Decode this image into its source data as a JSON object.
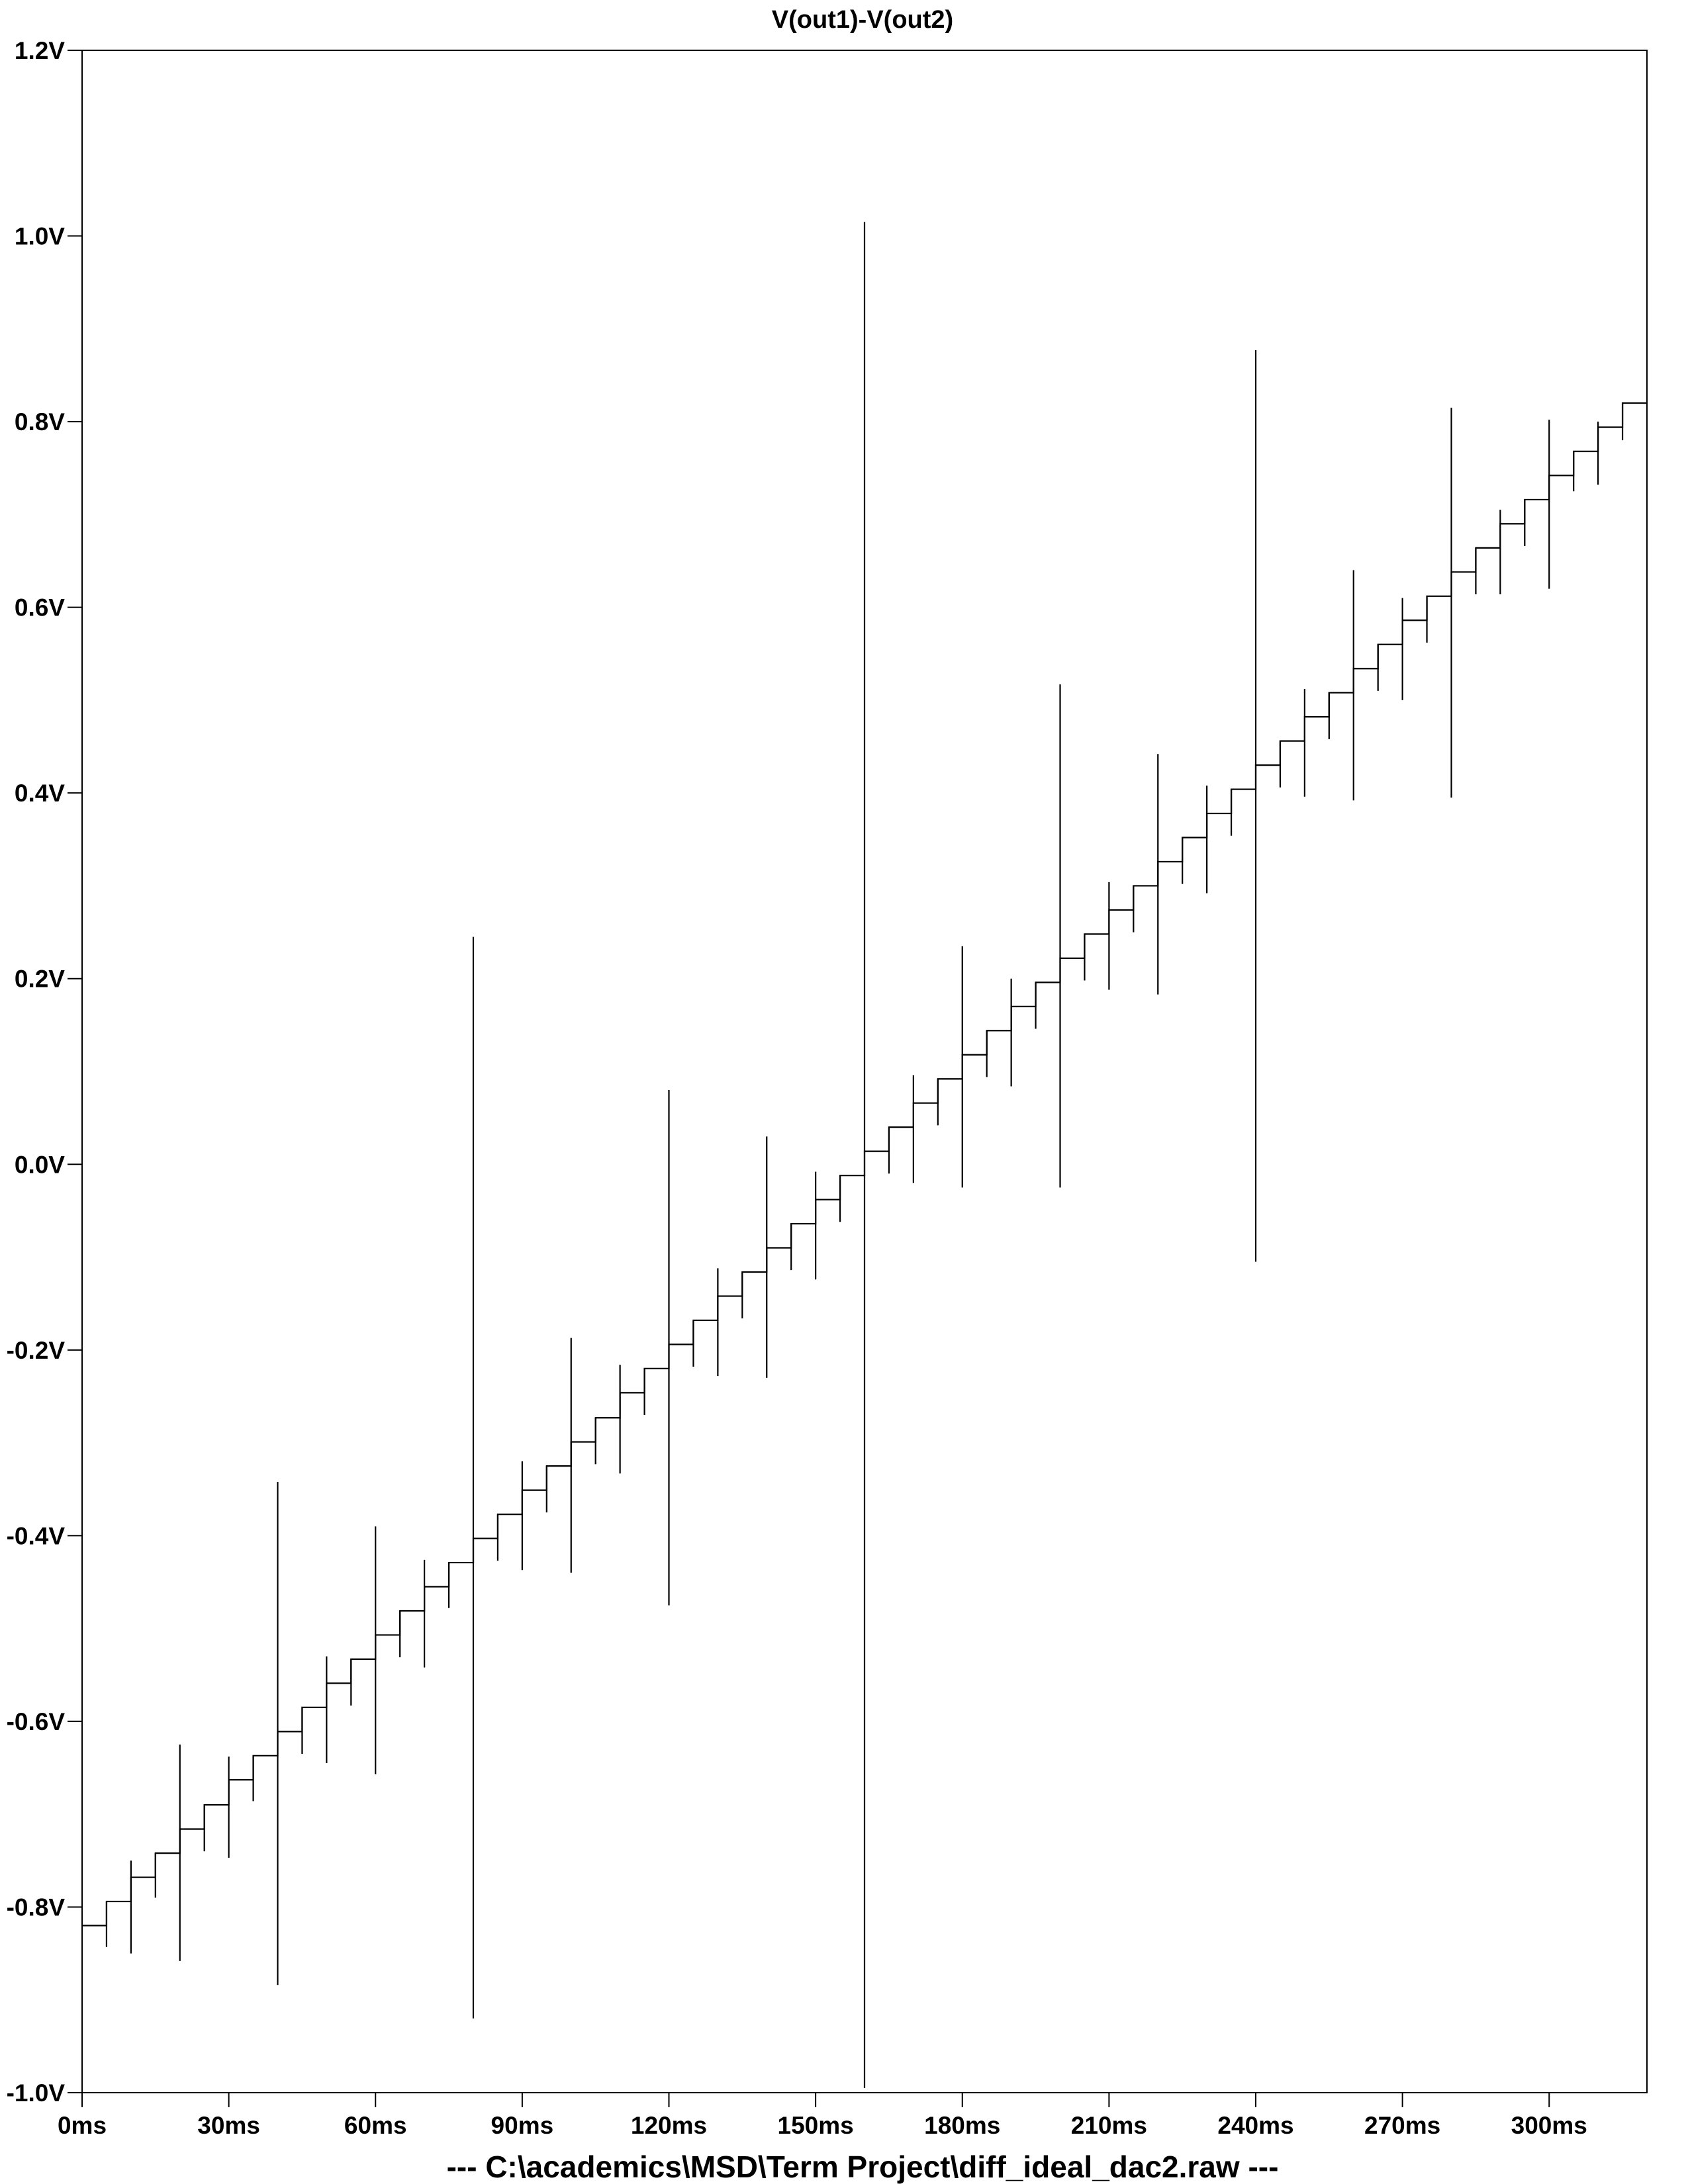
{
  "chart_data": {
    "type": "line",
    "title": "V(out1)-V(out2)",
    "xlabel": "",
    "ylabel": "",
    "footer": "---  C:\\academics\\MSD\\Term Project\\diff_ideal_dac2.raw  ---",
    "xlim": [
      0,
      320
    ],
    "ylim": [
      -1.0,
      1.2
    ],
    "x_unit": "ms",
    "y_unit": "V",
    "x_ticks": [
      0,
      30,
      60,
      90,
      120,
      150,
      180,
      210,
      240,
      270,
      300
    ],
    "x_tick_labels": [
      "0ms",
      "30ms",
      "60ms",
      "90ms",
      "120ms",
      "150ms",
      "180ms",
      "210ms",
      "240ms",
      "270ms",
      "300ms"
    ],
    "y_ticks": [
      1.2,
      1.0,
      0.8,
      0.6,
      0.4,
      0.2,
      0.0,
      -0.2,
      -0.4,
      -0.6,
      -0.8,
      -1.0
    ],
    "y_tick_labels": [
      "1.2V",
      "1.0V",
      "0.8V",
      "0.6V",
      "0.4V",
      "0.2V",
      "0.0V",
      "-0.2V",
      "-0.4V",
      "-0.6V",
      "-0.8V",
      "-1.0V"
    ],
    "series": [
      {
        "name": "V(out1)-V(out2)",
        "color": "#000000",
        "step_ms": 5,
        "levels": [
          -0.82,
          -0.794,
          -0.768,
          -0.742,
          -0.716,
          -0.69,
          -0.663,
          -0.637,
          -0.611,
          -0.585,
          -0.559,
          -0.533,
          -0.507,
          -0.481,
          -0.455,
          -0.429,
          -0.403,
          -0.377,
          -0.351,
          -0.325,
          -0.299,
          -0.273,
          -0.246,
          -0.22,
          -0.194,
          -0.168,
          -0.142,
          -0.116,
          -0.09,
          -0.064,
          -0.038,
          -0.012,
          0.014,
          0.04,
          0.066,
          0.092,
          0.118,
          0.144,
          0.17,
          0.196,
          0.222,
          0.248,
          0.274,
          0.3,
          0.326,
          0.352,
          0.378,
          0.404,
          0.43,
          0.456,
          0.482,
          0.508,
          0.534,
          0.56,
          0.586,
          0.612,
          0.638,
          0.664,
          0.69,
          0.716,
          0.742,
          0.768,
          0.794,
          0.82
        ],
        "transition_spikes": [
          {
            "t": 5,
            "min": -0.843,
            "max": -0.794
          },
          {
            "t": 10,
            "min": -0.85,
            "max": -0.75
          },
          {
            "t": 15,
            "min": -0.79,
            "max": -0.742
          },
          {
            "t": 20,
            "min": -0.858,
            "max": -0.625
          },
          {
            "t": 25,
            "min": -0.74,
            "max": -0.69
          },
          {
            "t": 30,
            "min": -0.747,
            "max": -0.638
          },
          {
            "t": 35,
            "min": -0.686,
            "max": -0.637
          },
          {
            "t": 40,
            "min": -0.884,
            "max": -0.342
          },
          {
            "t": 45,
            "min": -0.635,
            "max": -0.585
          },
          {
            "t": 50,
            "min": -0.645,
            "max": -0.53
          },
          {
            "t": 55,
            "min": -0.583,
            "max": -0.533
          },
          {
            "t": 60,
            "min": -0.657,
            "max": -0.39
          },
          {
            "t": 65,
            "min": -0.531,
            "max": -0.481
          },
          {
            "t": 70,
            "min": -0.542,
            "max": -0.426
          },
          {
            "t": 75,
            "min": -0.478,
            "max": -0.429
          },
          {
            "t": 80,
            "min": -0.92,
            "max": 0.245
          },
          {
            "t": 85,
            "min": -0.427,
            "max": -0.377
          },
          {
            "t": 90,
            "min": -0.437,
            "max": -0.32
          },
          {
            "t": 95,
            "min": -0.375,
            "max": -0.325
          },
          {
            "t": 100,
            "min": -0.44,
            "max": -0.187
          },
          {
            "t": 105,
            "min": -0.323,
            "max": -0.273
          },
          {
            "t": 110,
            "min": -0.333,
            "max": -0.216
          },
          {
            "t": 115,
            "min": -0.27,
            "max": -0.22
          },
          {
            "t": 120,
            "min": -0.475,
            "max": 0.08
          },
          {
            "t": 125,
            "min": -0.218,
            "max": -0.168
          },
          {
            "t": 130,
            "min": -0.228,
            "max": -0.112
          },
          {
            "t": 135,
            "min": -0.166,
            "max": -0.116
          },
          {
            "t": 140,
            "min": -0.23,
            "max": 0.03
          },
          {
            "t": 145,
            "min": -0.114,
            "max": -0.064
          },
          {
            "t": 150,
            "min": -0.124,
            "max": -0.008
          },
          {
            "t": 155,
            "min": -0.062,
            "max": -0.012
          },
          {
            "t": 160,
            "min": -0.995,
            "max": 1.015
          },
          {
            "t": 165,
            "min": -0.01,
            "max": 0.04
          },
          {
            "t": 170,
            "min": -0.02,
            "max": 0.096
          },
          {
            "t": 175,
            "min": 0.042,
            "max": 0.092
          },
          {
            "t": 180,
            "min": -0.025,
            "max": 0.235
          },
          {
            "t": 185,
            "min": 0.094,
            "max": 0.144
          },
          {
            "t": 190,
            "min": 0.084,
            "max": 0.2
          },
          {
            "t": 195,
            "min": 0.146,
            "max": 0.196
          },
          {
            "t": 200,
            "min": -0.025,
            "max": 0.517
          },
          {
            "t": 205,
            "min": 0.198,
            "max": 0.248
          },
          {
            "t": 210,
            "min": 0.188,
            "max": 0.304
          },
          {
            "t": 215,
            "min": 0.25,
            "max": 0.3
          },
          {
            "t": 220,
            "min": 0.183,
            "max": 0.442
          },
          {
            "t": 225,
            "min": 0.302,
            "max": 0.352
          },
          {
            "t": 230,
            "min": 0.292,
            "max": 0.408
          },
          {
            "t": 235,
            "min": 0.354,
            "max": 0.404
          },
          {
            "t": 240,
            "min": -0.105,
            "max": 0.877
          },
          {
            "t": 245,
            "min": 0.406,
            "max": 0.456
          },
          {
            "t": 250,
            "min": 0.396,
            "max": 0.512
          },
          {
            "t": 255,
            "min": 0.458,
            "max": 0.508
          },
          {
            "t": 260,
            "min": 0.392,
            "max": 0.64
          },
          {
            "t": 265,
            "min": 0.51,
            "max": 0.56
          },
          {
            "t": 270,
            "min": 0.5,
            "max": 0.61
          },
          {
            "t": 275,
            "min": 0.562,
            "max": 0.612
          },
          {
            "t": 280,
            "min": 0.395,
            "max": 0.815
          },
          {
            "t": 285,
            "min": 0.614,
            "max": 0.664
          },
          {
            "t": 290,
            "min": 0.614,
            "max": 0.705
          },
          {
            "t": 295,
            "min": 0.666,
            "max": 0.716
          },
          {
            "t": 300,
            "min": 0.62,
            "max": 0.802
          },
          {
            "t": 305,
            "min": 0.725,
            "max": 0.768
          },
          {
            "t": 310,
            "min": 0.732,
            "max": 0.8
          },
          {
            "t": 315,
            "min": 0.78,
            "max": 0.82
          }
        ]
      }
    ]
  }
}
